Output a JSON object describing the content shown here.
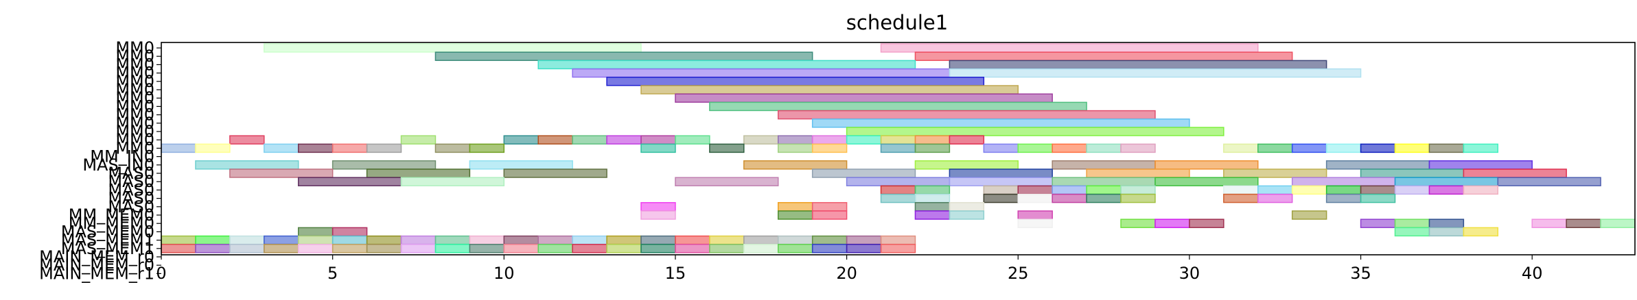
{
  "chart_data": {
    "type": "gantt",
    "title": "schedule1",
    "xlim": [
      0,
      43
    ],
    "x_ticks": [
      0,
      5,
      10,
      15,
      20,
      25,
      30,
      35,
      40
    ],
    "grid": false,
    "legend": "none",
    "rows": [
      "MM0",
      "MM0",
      "MM0",
      "MM0",
      "MM0",
      "MM0",
      "MM0",
      "MM0",
      "MM0",
      "MM0",
      "MM0",
      "MM0",
      "MM0",
      "MM_IN0",
      "MAS_IN0",
      "MAS0",
      "MAS0",
      "MAS0",
      "MAS0",
      "MAS0",
      "MM_MEM0",
      "MM_MEM0",
      "MAS_MEM0",
      "MAS_MEM1",
      "MAS_MEM1",
      "MAIN_MEM_r0",
      "MAIN_MEM_r0",
      "MAIN_MEM_r1"
    ],
    "tasks": [
      {
        "row": 0,
        "s": 3,
        "e": 14,
        "c": "#ccffcc"
      },
      {
        "row": 0,
        "s": 21,
        "e": 32,
        "c": "#f4a0c8"
      },
      {
        "row": 1,
        "s": 8,
        "e": 19,
        "c": "#3a8a7a"
      },
      {
        "row": 1,
        "s": 22,
        "e": 33,
        "c": "#ee5060"
      },
      {
        "row": 2,
        "s": 11,
        "e": 22,
        "c": "#40e0c8"
      },
      {
        "row": 2,
        "s": 23,
        "e": 34,
        "c": "#404878"
      },
      {
        "row": 3,
        "s": 12,
        "e": 23,
        "c": "#9070f0"
      },
      {
        "row": 3,
        "s": 23,
        "e": 35,
        "c": "#b0e0f0"
      },
      {
        "row": 4,
        "s": 13,
        "e": 24,
        "c": "#2020d0"
      },
      {
        "row": 5,
        "s": 14,
        "e": 25,
        "c": "#c0a850"
      },
      {
        "row": 6,
        "s": 15,
        "e": 26,
        "c": "#a040a0"
      },
      {
        "row": 7,
        "s": 16,
        "e": 27,
        "c": "#50c080"
      },
      {
        "row": 8,
        "s": 18,
        "e": 29,
        "c": "#e05070"
      },
      {
        "row": 9,
        "s": 19,
        "e": 30,
        "c": "#60c0f0"
      },
      {
        "row": 10,
        "s": 20,
        "e": 31,
        "c": "#80f040"
      },
      {
        "row": 11,
        "s": 2,
        "e": 3,
        "c": "#e04060"
      },
      {
        "row": 11,
        "s": 7,
        "e": 8,
        "c": "#a0e070"
      },
      {
        "row": 11,
        "s": 10,
        "e": 11,
        "c": "#309090"
      },
      {
        "row": 11,
        "s": 11,
        "e": 12,
        "c": "#b05020"
      },
      {
        "row": 11,
        "s": 12,
        "e": 13,
        "c": "#60c080"
      },
      {
        "row": 11,
        "s": 13,
        "e": 14,
        "c": "#c040e0"
      },
      {
        "row": 11,
        "s": 14,
        "e": 15,
        "c": "#b040a0"
      },
      {
        "row": 11,
        "s": 15,
        "e": 16,
        "c": "#60e090"
      },
      {
        "row": 11,
        "s": 17,
        "e": 18,
        "c": "#c0c0a0"
      },
      {
        "row": 11,
        "s": 18,
        "e": 19,
        "c": "#9070b0"
      },
      {
        "row": 11,
        "s": 19,
        "e": 20,
        "c": "#e070e0"
      },
      {
        "row": 11,
        "s": 20,
        "e": 21,
        "c": "#40f0c0"
      },
      {
        "row": 11,
        "s": 21,
        "e": 22,
        "c": "#d0d050"
      },
      {
        "row": 11,
        "s": 22,
        "e": 23,
        "c": "#f09040"
      },
      {
        "row": 11,
        "s": 23,
        "e": 24,
        "c": "#e03050"
      },
      {
        "row": 12,
        "s": 0,
        "e": 1,
        "c": "#90b0e0"
      },
      {
        "row": 12,
        "s": 1,
        "e": 2,
        "c": "#ffff90"
      },
      {
        "row": 12,
        "s": 3,
        "e": 4,
        "c": "#80d0f0"
      },
      {
        "row": 12,
        "s": 4,
        "e": 5,
        "c": "#703050"
      },
      {
        "row": 12,
        "s": 5,
        "e": 6,
        "c": "#f07070"
      },
      {
        "row": 12,
        "s": 6,
        "e": 7,
        "c": "#a0a0a0"
      },
      {
        "row": 12,
        "s": 8,
        "e": 9,
        "c": "#909060"
      },
      {
        "row": 12,
        "s": 9,
        "e": 10,
        "c": "#70a020"
      },
      {
        "row": 12,
        "s": 14,
        "e": 15,
        "c": "#30c0a0"
      },
      {
        "row": 12,
        "s": 16,
        "e": 17,
        "c": "#306040"
      },
      {
        "row": 12,
        "s": 18,
        "e": 19,
        "c": "#a0d080"
      },
      {
        "row": 12,
        "s": 19,
        "e": 20,
        "c": "#ffc050"
      },
      {
        "row": 12,
        "s": 21,
        "e": 22,
        "c": "#50a0b0"
      },
      {
        "row": 12,
        "s": 22,
        "e": 23,
        "c": "#60a050"
      },
      {
        "row": 12,
        "s": 24,
        "e": 25,
        "c": "#8080f0"
      },
      {
        "row": 12,
        "s": 25,
        "e": 26,
        "c": "#70f050"
      },
      {
        "row": 12,
        "s": 26,
        "e": 27,
        "c": "#ff7040"
      },
      {
        "row": 12,
        "s": 27,
        "e": 28,
        "c": "#90e0c0"
      },
      {
        "row": 12,
        "s": 28,
        "e": 29,
        "c": "#e0a0c0"
      },
      {
        "row": 12,
        "s": 31,
        "e": 32,
        "c": "#e0f0a0"
      },
      {
        "row": 12,
        "s": 32,
        "e": 33,
        "c": "#40c060"
      },
      {
        "row": 12,
        "s": 33,
        "e": 34,
        "c": "#3050f0"
      },
      {
        "row": 12,
        "s": 34,
        "e": 35,
        "c": "#90f0f0"
      },
      {
        "row": 12,
        "s": 35,
        "e": 36,
        "c": "#1020c0"
      },
      {
        "row": 12,
        "s": 36,
        "e": 37,
        "c": "#ffff20"
      },
      {
        "row": 12,
        "s": 37,
        "e": 38,
        "c": "#707050"
      },
      {
        "row": 12,
        "s": 38,
        "e": 39,
        "c": "#40f0c0"
      },
      {
        "row": 14,
        "s": 1,
        "e": 4,
        "c": "#70d0d0"
      },
      {
        "row": 14,
        "s": 5,
        "e": 8,
        "c": "#709070"
      },
      {
        "row": 14,
        "s": 9,
        "e": 12,
        "c": "#90e0f0"
      },
      {
        "row": 14,
        "s": 17,
        "e": 20,
        "c": "#d09030"
      },
      {
        "row": 14,
        "s": 22,
        "e": 25,
        "c": "#a0f040"
      },
      {
        "row": 14,
        "s": 26,
        "e": 29,
        "c": "#a08070"
      },
      {
        "row": 14,
        "s": 29,
        "e": 32,
        "c": "#f09030"
      },
      {
        "row": 14,
        "s": 34,
        "e": 37,
        "c": "#6080a0"
      },
      {
        "row": 14,
        "s": 37,
        "e": 40,
        "c": "#6030e0"
      },
      {
        "row": 15,
        "s": 2,
        "e": 5,
        "c": "#c07080"
      },
      {
        "row": 15,
        "s": 6,
        "e": 9,
        "c": "#507030"
      },
      {
        "row": 15,
        "s": 10,
        "e": 13,
        "c": "#607040"
      },
      {
        "row": 15,
        "s": 19,
        "e": 22,
        "c": "#90a0b0"
      },
      {
        "row": 15,
        "s": 23,
        "e": 26,
        "c": "#2040a0"
      },
      {
        "row": 15,
        "s": 27,
        "e": 30,
        "c": "#f0a040"
      },
      {
        "row": 15,
        "s": 31,
        "e": 34,
        "c": "#c0b050"
      },
      {
        "row": 15,
        "s": 35,
        "e": 38,
        "c": "#40a090"
      },
      {
        "row": 15,
        "s": 38,
        "e": 41,
        "c": "#e03050"
      },
      {
        "row": 16,
        "s": 4,
        "e": 7,
        "c": "#603060"
      },
      {
        "row": 16,
        "s": 7,
        "e": 10,
        "c": "#b0f0c0"
      },
      {
        "row": 16,
        "s": 15,
        "e": 18,
        "c": "#c080b0"
      },
      {
        "row": 16,
        "s": 20,
        "e": 23,
        "c": "#8080e0"
      },
      {
        "row": 16,
        "s": 23,
        "e": 26,
        "c": "#a0a0f0"
      },
      {
        "row": 16,
        "s": 26,
        "e": 29,
        "c": "#70c080"
      },
      {
        "row": 16,
        "s": 29,
        "e": 32,
        "c": "#40c040"
      },
      {
        "row": 16,
        "s": 33,
        "e": 36,
        "c": "#b080e0"
      },
      {
        "row": 16,
        "s": 36,
        "e": 39,
        "c": "#20a0d0"
      },
      {
        "row": 16,
        "s": 39,
        "e": 42,
        "c": "#5060b0"
      },
      {
        "row": 17,
        "s": 21,
        "e": 22,
        "c": "#d03030"
      },
      {
        "row": 17,
        "s": 22,
        "e": 23,
        "c": "#50c070"
      },
      {
        "row": 17,
        "s": 24,
        "e": 25,
        "c": "#c0b0a0"
      },
      {
        "row": 17,
        "s": 25,
        "e": 26,
        "c": "#a03050"
      },
      {
        "row": 17,
        "s": 26,
        "e": 27,
        "c": "#80a0f0"
      },
      {
        "row": 17,
        "s": 27,
        "e": 28,
        "c": "#60f040"
      },
      {
        "row": 17,
        "s": 28,
        "e": 29,
        "c": "#a0e0c0"
      },
      {
        "row": 17,
        "s": 31,
        "e": 32,
        "c": "#e0f0f0"
      },
      {
        "row": 17,
        "s": 32,
        "e": 33,
        "c": "#70d0f0"
      },
      {
        "row": 17,
        "s": 33,
        "e": 34,
        "c": "#ffff80"
      },
      {
        "row": 17,
        "s": 34,
        "e": 35,
        "c": "#20c030"
      },
      {
        "row": 17,
        "s": 35,
        "e": 36,
        "c": "#704040"
      },
      {
        "row": 17,
        "s": 36,
        "e": 37,
        "c": "#c0b0f0"
      },
      {
        "row": 17,
        "s": 37,
        "e": 38,
        "c": "#c020d0"
      },
      {
        "row": 17,
        "s": 38,
        "e": 39,
        "c": "#f0b0c0"
      },
      {
        "row": 18,
        "s": 21,
        "e": 22,
        "c": "#70c0c0"
      },
      {
        "row": 18,
        "s": 22,
        "e": 23,
        "c": "#b0e0e0"
      },
      {
        "row": 18,
        "s": 24,
        "e": 25,
        "c": "#404030"
      },
      {
        "row": 18,
        "s": 25,
        "e": 26,
        "c": "#f0f0f0"
      },
      {
        "row": 18,
        "s": 26,
        "e": 27,
        "c": "#c040a0"
      },
      {
        "row": 18,
        "s": 27,
        "e": 28,
        "c": "#308060"
      },
      {
        "row": 18,
        "s": 28,
        "e": 29,
        "c": "#a0c040"
      },
      {
        "row": 18,
        "s": 31,
        "e": 32,
        "c": "#d06030"
      },
      {
        "row": 18,
        "s": 32,
        "e": 33,
        "c": "#e060e0"
      },
      {
        "row": 18,
        "s": 34,
        "e": 35,
        "c": "#6080a0"
      },
      {
        "row": 18,
        "s": 35,
        "e": 36,
        "c": "#40c0a0"
      },
      {
        "row": 19,
        "s": 14,
        "e": 15,
        "c": "#f040f0"
      },
      {
        "row": 19,
        "s": 18,
        "e": 19,
        "c": "#f0a020"
      },
      {
        "row": 19,
        "s": 19,
        "e": 20,
        "c": "#f06070"
      },
      {
        "row": 19,
        "s": 22,
        "e": 23,
        "c": "#508060"
      },
      {
        "row": 19,
        "s": 23,
        "e": 24,
        "c": "#e0e0d0"
      },
      {
        "row": 20,
        "s": 14,
        "e": 15,
        "c": "#f0a0e0"
      },
      {
        "row": 20,
        "s": 18,
        "e": 19,
        "c": "#509030"
      },
      {
        "row": 20,
        "s": 19,
        "e": 20,
        "c": "#f05070"
      },
      {
        "row": 20,
        "s": 22,
        "e": 23,
        "c": "#9020e0"
      },
      {
        "row": 20,
        "s": 23,
        "e": 24,
        "c": "#90d0d0"
      },
      {
        "row": 20,
        "s": 25,
        "e": 26,
        "c": "#d040b0"
      },
      {
        "row": 20,
        "s": 33,
        "e": 34,
        "c": "#a0a040"
      },
      {
        "row": 21,
        "s": 25,
        "e": 26,
        "c": "#f0f0f0"
      },
      {
        "row": 21,
        "s": 28,
        "e": 29,
        "c": "#70e040"
      },
      {
        "row": 21,
        "s": 29,
        "e": 30,
        "c": "#d020f0"
      },
      {
        "row": 21,
        "s": 30,
        "e": 31,
        "c": "#a03050"
      },
      {
        "row": 21,
        "s": 35,
        "e": 36,
        "c": "#9040d0"
      },
      {
        "row": 21,
        "s": 36,
        "e": 37,
        "c": "#70e060"
      },
      {
        "row": 21,
        "s": 37,
        "e": 38,
        "c": "#305090"
      },
      {
        "row": 21,
        "s": 40,
        "e": 41,
        "c": "#f090e0"
      },
      {
        "row": 21,
        "s": 41,
        "e": 42,
        "c": "#704040"
      },
      {
        "row": 21,
        "s": 42,
        "e": 43,
        "c": "#90f0a0"
      },
      {
        "row": 22,
        "s": 4,
        "e": 5,
        "c": "#508040"
      },
      {
        "row": 22,
        "s": 5,
        "e": 6,
        "c": "#b03060"
      },
      {
        "row": 22,
        "s": 36,
        "e": 37,
        "c": "#50f090"
      },
      {
        "row": 22,
        "s": 37,
        "e": 38,
        "c": "#90c0c0"
      },
      {
        "row": 22,
        "s": 38,
        "e": 39,
        "c": "#f0e040"
      },
      {
        "row": 23,
        "s": 0,
        "e": 1,
        "c": "#a0c040"
      },
      {
        "row": 23,
        "s": 1,
        "e": 2,
        "c": "#40f040"
      },
      {
        "row": 23,
        "s": 2,
        "e": 3,
        "c": "#c0e0e0"
      },
      {
        "row": 23,
        "s": 3,
        "e": 4,
        "c": "#4060d0"
      },
      {
        "row": 23,
        "s": 4,
        "e": 5,
        "c": "#b0d080"
      },
      {
        "row": 23,
        "s": 5,
        "e": 6,
        "c": "#60c0d0"
      },
      {
        "row": 23,
        "s": 6,
        "e": 7,
        "c": "#909020"
      },
      {
        "row": 23,
        "s": 7,
        "e": 8,
        "c": "#c080e0"
      },
      {
        "row": 23,
        "s": 8,
        "e": 9,
        "c": "#60c090"
      },
      {
        "row": 23,
        "s": 9,
        "e": 10,
        "c": "#f0b0d0"
      },
      {
        "row": 23,
        "s": 10,
        "e": 11,
        "c": "#804060"
      },
      {
        "row": 23,
        "s": 11,
        "e": 12,
        "c": "#b070a0"
      },
      {
        "row": 23,
        "s": 12,
        "e": 13,
        "c": "#90d0f0"
      },
      {
        "row": 23,
        "s": 13,
        "e": 14,
        "c": "#b0a020"
      },
      {
        "row": 23,
        "s": 14,
        "e": 15,
        "c": "#507080"
      },
      {
        "row": 23,
        "s": 15,
        "e": 16,
        "c": "#f05050"
      },
      {
        "row": 23,
        "s": 16,
        "e": 17,
        "c": "#e0d040"
      },
      {
        "row": 23,
        "s": 17,
        "e": 18,
        "c": "#a0a0a0"
      },
      {
        "row": 23,
        "s": 18,
        "e": 19,
        "c": "#b0c0c0"
      },
      {
        "row": 23,
        "s": 19,
        "e": 20,
        "c": "#609040"
      },
      {
        "row": 23,
        "s": 20,
        "e": 21,
        "c": "#a06090"
      },
      {
        "row": 23,
        "s": 21,
        "e": 22,
        "c": "#e09080"
      },
      {
        "row": 24,
        "s": 0,
        "e": 1,
        "c": "#e05050"
      },
      {
        "row": 24,
        "s": 1,
        "e": 2,
        "c": "#9050c0"
      },
      {
        "row": 24,
        "s": 2,
        "e": 3,
        "c": "#b0c0d0"
      },
      {
        "row": 24,
        "s": 3,
        "e": 4,
        "c": "#b09050"
      },
      {
        "row": 24,
        "s": 4,
        "e": 5,
        "c": "#f0b0e0"
      },
      {
        "row": 24,
        "s": 5,
        "e": 6,
        "c": "#c0a060"
      },
      {
        "row": 24,
        "s": 6,
        "e": 7,
        "c": "#a09050"
      },
      {
        "row": 24,
        "s": 7,
        "e": 8,
        "c": "#e0a0f0"
      },
      {
        "row": 24,
        "s": 8,
        "e": 9,
        "c": "#30f0a0"
      },
      {
        "row": 24,
        "s": 9,
        "e": 10,
        "c": "#508070"
      },
      {
        "row": 24,
        "s": 10,
        "e": 11,
        "c": "#f08090"
      },
      {
        "row": 24,
        "s": 11,
        "e": 12,
        "c": "#60d060"
      },
      {
        "row": 24,
        "s": 12,
        "e": 13,
        "c": "#d03050"
      },
      {
        "row": 24,
        "s": 13,
        "e": 14,
        "c": "#b0d050"
      },
      {
        "row": 24,
        "s": 14,
        "e": 15,
        "c": "#208060"
      },
      {
        "row": 24,
        "s": 15,
        "e": 16,
        "c": "#e050a0"
      },
      {
        "row": 24,
        "s": 16,
        "e": 17,
        "c": "#80c060"
      },
      {
        "row": 24,
        "s": 17,
        "e": 18,
        "c": "#d0f0d0"
      },
      {
        "row": 24,
        "s": 18,
        "e": 19,
        "c": "#60d050"
      },
      {
        "row": 24,
        "s": 19,
        "e": 20,
        "c": "#3040c0"
      },
      {
        "row": 24,
        "s": 20,
        "e": 21,
        "c": "#4020b0"
      },
      {
        "row": 24,
        "s": 21,
        "e": 22,
        "c": "#f06060"
      }
    ]
  }
}
